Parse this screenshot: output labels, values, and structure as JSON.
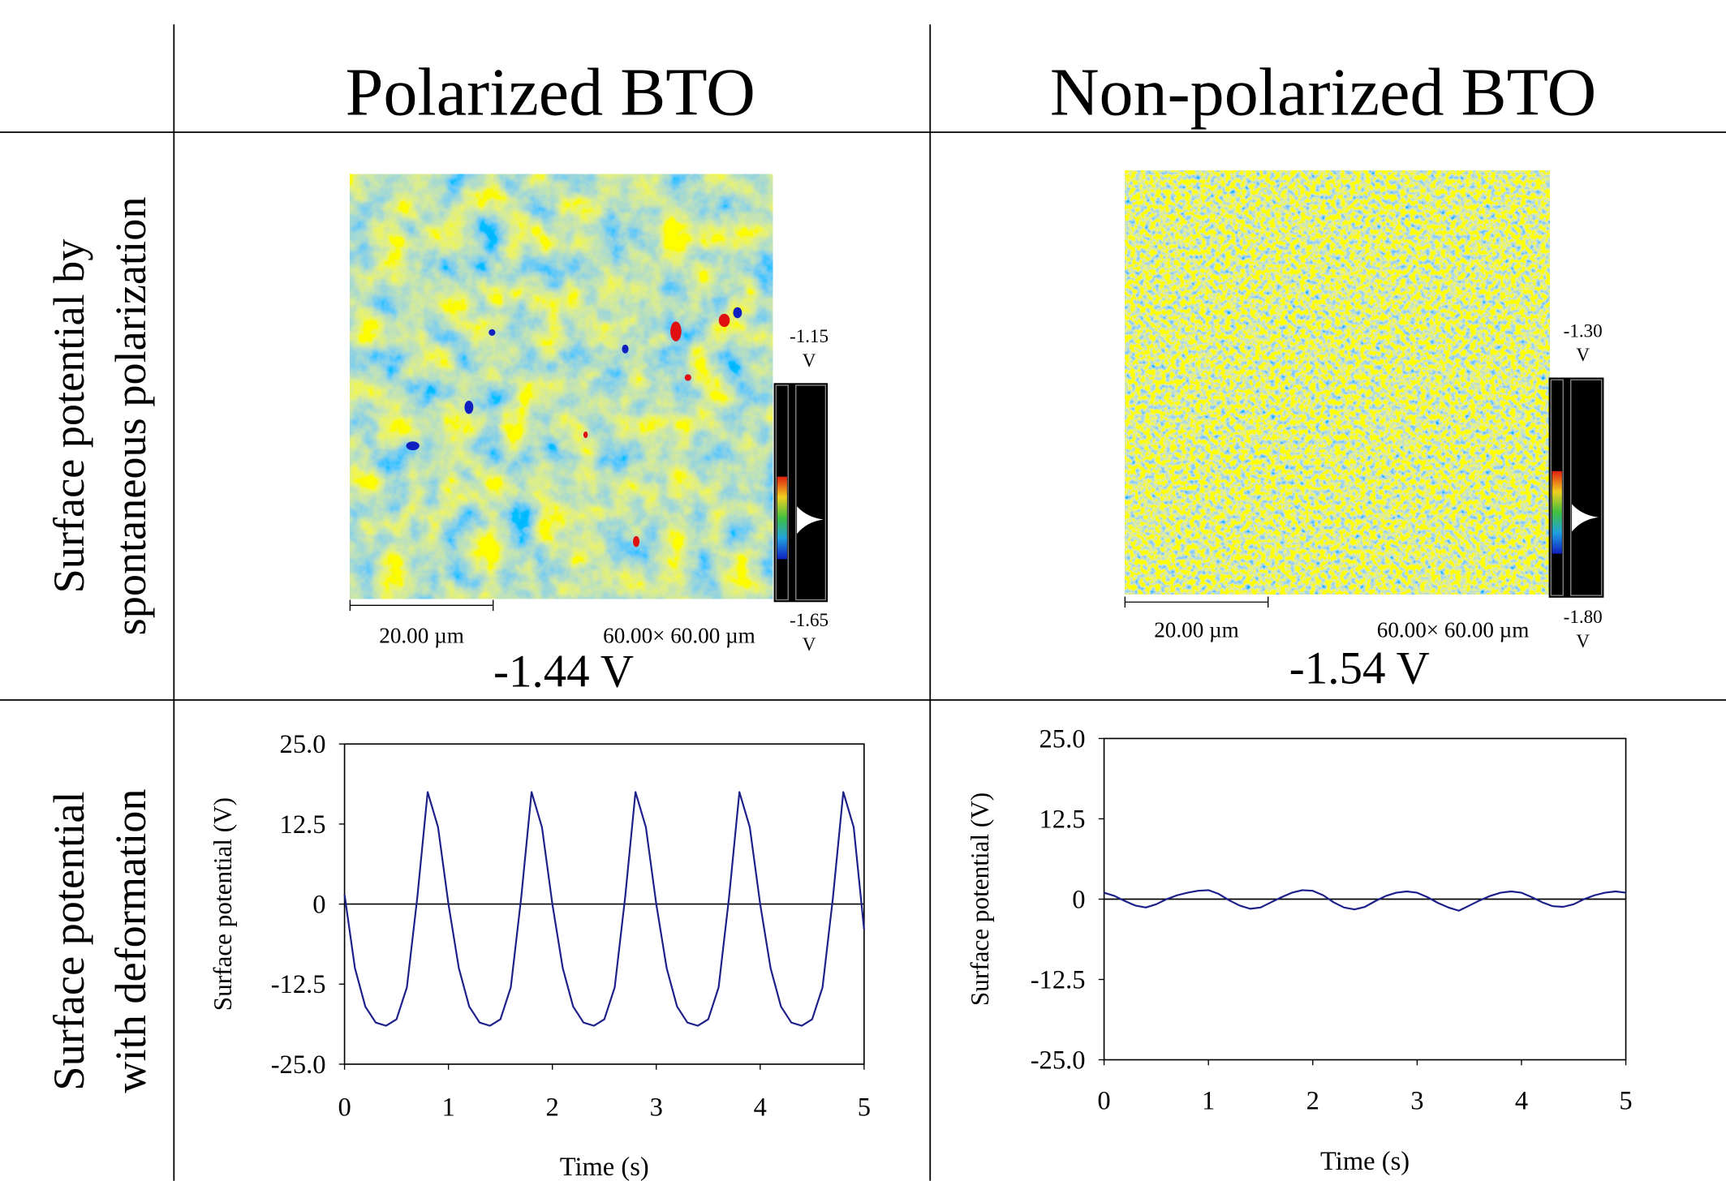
{
  "header": {
    "columns": [
      "Polarized BTO",
      "Non-polarized BTO"
    ]
  },
  "rows": [
    [
      "Surface potential by",
      "spontaneous polarization"
    ],
    [
      "Surface potential",
      "with deformation"
    ]
  ],
  "maps": [
    {
      "scale_bar": "20.00 µm",
      "size": "60.00× 60.00 µm",
      "colorbar_max": "-1.15",
      "colorbar_min": "-1.65",
      "unit": "V",
      "mean": "-1.44 V"
    },
    {
      "scale_bar": "20.00 µm",
      "size": "60.00× 60.00 µm",
      "colorbar_max": "-1.30",
      "colorbar_min": "-1.80",
      "unit": "V",
      "mean": "-1.54 V"
    }
  ],
  "chart_data": [
    {
      "type": "line",
      "x_label": "Time (s)",
      "y_label": "Surface potential (V)",
      "x": [
        0,
        0.1,
        0.2,
        0.3,
        0.4,
        0.5,
        0.6,
        0.7,
        0.8,
        0.9,
        1,
        1.1,
        1.2,
        1.3,
        1.4,
        1.5,
        1.6,
        1.7,
        1.8,
        1.9,
        2,
        2.1,
        2.2,
        2.3,
        2.4,
        2.5,
        2.6,
        2.7,
        2.8,
        2.9,
        3,
        3.1,
        3.2,
        3.3,
        3.4,
        3.5,
        3.6,
        3.7,
        3.8,
        3.9,
        4,
        4.1,
        4.2,
        4.3,
        4.4,
        4.5,
        4.6,
        4.7,
        4.8,
        4.9,
        5
      ],
      "series": [
        {
          "color": "#1c1f8a",
          "values": [
            1.5,
            -10,
            -16,
            -18.5,
            -19,
            -18,
            -13,
            1,
            17.5,
            12,
            0,
            -10,
            -16,
            -18.5,
            -19,
            -18,
            -13,
            1,
            17.5,
            12,
            0,
            -10,
            -16,
            -18.5,
            -19,
            -18,
            -13,
            1,
            17.5,
            12,
            0,
            -10,
            -16,
            -18.5,
            -19,
            -18,
            -13,
            1,
            17.5,
            12,
            0,
            -10,
            -16,
            -18.5,
            -19,
            -18,
            -13,
            1,
            17.5,
            12,
            -4
          ]
        }
      ],
      "xlim": [
        0,
        5
      ],
      "ylim": [
        -25,
        25
      ],
      "xticks": [
        0,
        1,
        2,
        3,
        4,
        5
      ],
      "yticks": [
        {
          "value": 25,
          "label": "25.0"
        },
        12.5,
        0,
        -12.5,
        {
          "value": -25,
          "label": "-25.0"
        }
      ]
    },
    {
      "type": "line",
      "x_label": "Time (s)",
      "y_label": "Surface potential (V)",
      "x": [
        0,
        0.1,
        0.2,
        0.3,
        0.4,
        0.5,
        0.6,
        0.7,
        0.8,
        0.9,
        1,
        1.1,
        1.2,
        1.3,
        1.4,
        1.5,
        1.6,
        1.7,
        1.8,
        1.9,
        2,
        2.1,
        2.2,
        2.3,
        2.4,
        2.5,
        2.6,
        2.7,
        2.8,
        2.9,
        3,
        3.1,
        3.2,
        3.3,
        3.4,
        3.5,
        3.6,
        3.7,
        3.8,
        3.9,
        4,
        4.1,
        4.2,
        4.3,
        4.4,
        4.5,
        4.6,
        4.7,
        4.8,
        4.9,
        5
      ],
      "series": [
        {
          "color": "#1c1f8a",
          "values": [
            1,
            0.5,
            -0.3,
            -1,
            -1.3,
            -0.8,
            0,
            0.6,
            1,
            1.3,
            1.4,
            0.8,
            -0.2,
            -1,
            -1.5,
            -1.3,
            -0.5,
            0.3,
            1,
            1.4,
            1.3,
            0.6,
            -0.5,
            -1.3,
            -1.6,
            -1.2,
            -0.3,
            0.5,
            1,
            1.2,
            1,
            0.3,
            -0.6,
            -1.3,
            -1.8,
            -1,
            -0.2,
            0.5,
            1,
            1.2,
            1,
            0.3,
            -0.5,
            -1.1,
            -1.2,
            -0.8,
            0,
            0.6,
            1,
            1.2,
            1
          ]
        }
      ],
      "xlim": [
        0,
        5
      ],
      "ylim": [
        -25,
        25
      ],
      "xticks": [
        0,
        1,
        2,
        3,
        4,
        5
      ],
      "yticks": [
        {
          "value": 25,
          "label": "25.0"
        },
        12.5,
        0,
        -12.5,
        {
          "value": -25,
          "label": "-25.0"
        }
      ]
    }
  ]
}
